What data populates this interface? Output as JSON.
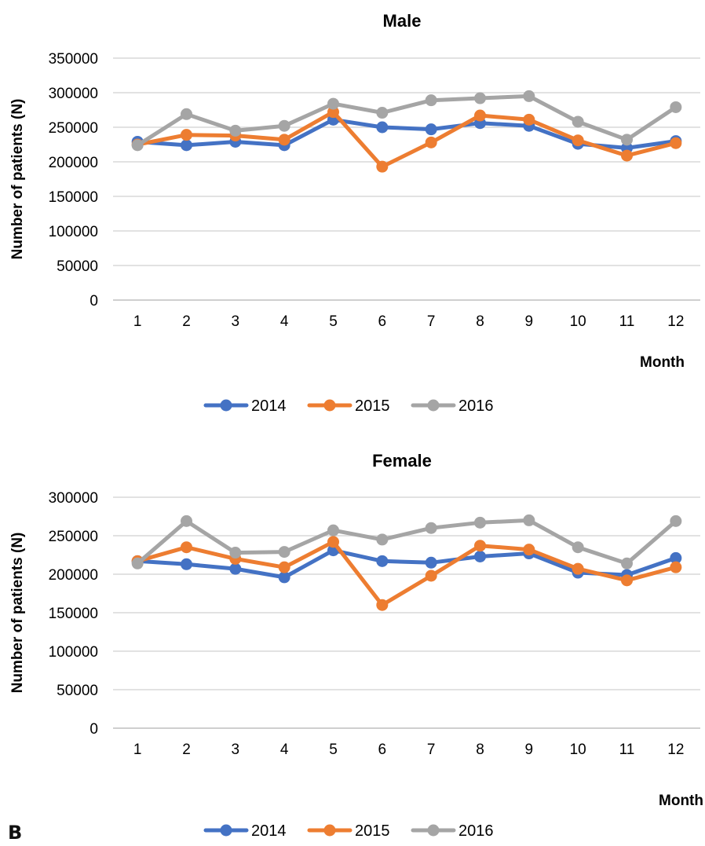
{
  "panel_label": "B",
  "colors": {
    "2014": "#4472C4",
    "2015": "#ED7D31",
    "2016": "#A5A5A5",
    "grid": "#D9D9D9",
    "axis": "#BFBFBF"
  },
  "chart_data": [
    {
      "type": "line",
      "title": "Male",
      "xlabel": "Month",
      "ylabel": "Number of patients (N)",
      "categories": [
        "1",
        "2",
        "3",
        "4",
        "5",
        "6",
        "7",
        "8",
        "9",
        "10",
        "11",
        "12"
      ],
      "ylim": [
        0,
        350000
      ],
      "yticks": [
        "0",
        "50000",
        "100000",
        "150000",
        "200000",
        "250000",
        "300000",
        "350000"
      ],
      "grid": true,
      "legend": "bottom",
      "series": [
        {
          "name": "2014",
          "values": [
            229000,
            224000,
            229000,
            224000,
            261000,
            250000,
            247000,
            256000,
            252000,
            226000,
            220000,
            230000
          ]
        },
        {
          "name": "2015",
          "values": [
            225000,
            239000,
            238000,
            232000,
            272000,
            193000,
            228000,
            267000,
            261000,
            231000,
            209000,
            227000
          ]
        },
        {
          "name": "2016",
          "values": [
            224000,
            269000,
            245000,
            252000,
            284000,
            271000,
            289000,
            292000,
            295000,
            258000,
            232000,
            279000
          ]
        }
      ]
    },
    {
      "type": "line",
      "title": "Female",
      "xlabel": "Month",
      "ylabel": "Number of patients (N)",
      "categories": [
        "1",
        "2",
        "3",
        "4",
        "5",
        "6",
        "7",
        "8",
        "9",
        "10",
        "11",
        "12"
      ],
      "ylim": [
        0,
        300000
      ],
      "yticks": [
        "0",
        "50000",
        "100000",
        "150000",
        "200000",
        "250000",
        "300000"
      ],
      "grid": true,
      "legend": "bottom",
      "series": [
        {
          "name": "2014",
          "values": [
            217000,
            213000,
            207000,
            196000,
            231000,
            217000,
            215000,
            223000,
            227000,
            202000,
            199000,
            221000
          ]
        },
        {
          "name": "2015",
          "values": [
            217000,
            235000,
            220000,
            209000,
            242000,
            160000,
            198000,
            237000,
            232000,
            207000,
            192000,
            209000
          ]
        },
        {
          "name": "2016",
          "values": [
            214000,
            269000,
            228000,
            229000,
            257000,
            245000,
            260000,
            267000,
            270000,
            235000,
            214000,
            269000
          ]
        }
      ]
    }
  ]
}
